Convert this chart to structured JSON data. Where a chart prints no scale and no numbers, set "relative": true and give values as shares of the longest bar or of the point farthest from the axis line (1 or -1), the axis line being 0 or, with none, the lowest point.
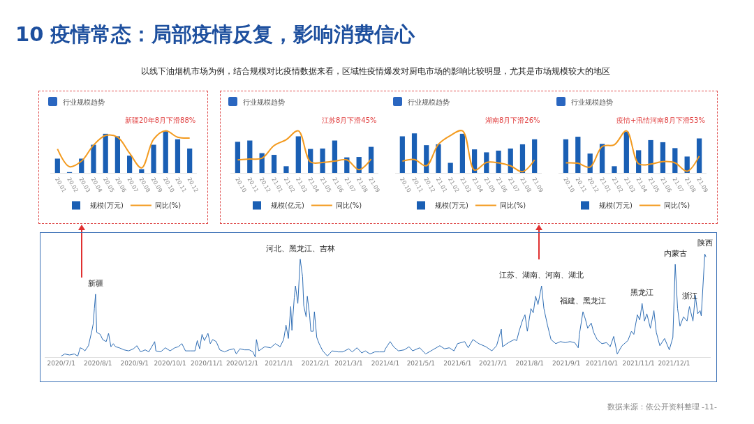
{
  "chart_data": [
    {
      "type": "other",
      "title": "10 疫情常态：局部疫情反复，影响消费信心",
      "subtitle": "以线下油烟机市场为例，结合规模对比疫情数据来看，区域性疫情爆发对厨电市场的影响比较明显，尤其是市场规模较大的地区"
    },
    {
      "type": "bar",
      "title": "行业规模趋势",
      "relative": true,
      "legend": "bottom",
      "categories": [
        "20.01",
        "20.02",
        "20.03",
        "20.04",
        "20.05",
        "20.06",
        "20.07",
        "20.08",
        "20.09",
        "20.10",
        "20.11",
        "20.12"
      ],
      "series": [
        {
          "name": "规模(万元)",
          "color": "#1a5fb4",
          "values": [
            0.34,
            0.02,
            0.34,
            0.67,
            0.93,
            0.87,
            0.41,
            0.09,
            0.67,
            0.99,
            0.8,
            0.58
          ]
        },
        {
          "name": "同比(%)",
          "type": "line",
          "color": "#f39a1e",
          "values": [
            0.57,
            0.15,
            0.28,
            0.66,
            0.89,
            0.85,
            0.47,
            0.12,
            0.8,
            1.0,
            0.85,
            0.83
          ]
        }
      ],
      "annotations": [
        "新疆20年8月下滑88%"
      ]
    },
    {
      "type": "bar",
      "title": "行业规模趋势",
      "relative": true,
      "legend": "bottom",
      "categories": [
        "20.10",
        "20.11",
        "20.12",
        "21.01",
        "21.02",
        "21.03",
        "21.04",
        "21.05",
        "21.06",
        "21.07",
        "21.08",
        "21.09"
      ],
      "series": [
        {
          "name": "规模(亿元)",
          "color": "#1a5fb4",
          "values": [
            0.74,
            0.77,
            0.47,
            0.43,
            0.16,
            0.87,
            0.57,
            0.58,
            0.77,
            0.37,
            0.38,
            0.62
          ]
        },
        {
          "name": "同比(%)",
          "type": "line",
          "color": "#f39a1e",
          "values": [
            0.31,
            0.33,
            0.35,
            0.65,
            0.79,
            1.0,
            0.26,
            0.25,
            0.28,
            0.31,
            0.08,
            0.33
          ]
        }
      ],
      "annotations": [
        "江苏8月下滑45%"
      ]
    },
    {
      "type": "bar",
      "title": "行业规模趋势",
      "relative": true,
      "legend": "bottom",
      "categories": [
        "20.10",
        "20.11",
        "20.12",
        "21.01",
        "21.02",
        "21.03",
        "21.04",
        "21.05",
        "21.06",
        "21.07",
        "21.08",
        "21.09"
      ],
      "series": [
        {
          "name": "规模(万元)",
          "color": "#1a5fb4",
          "values": [
            0.87,
            0.94,
            0.66,
            0.68,
            0.24,
            0.93,
            0.56,
            0.49,
            0.53,
            0.58,
            0.68,
            0.8
          ]
        },
        {
          "name": "同比(%)",
          "type": "line",
          "color": "#f39a1e",
          "values": [
            0.28,
            0.32,
            0.17,
            0.68,
            0.89,
            1.0,
            0.07,
            0.25,
            0.24,
            0.17,
            0.03,
            0.31
          ]
        }
      ],
      "annotations": [
        "湖南8月下滑26%"
      ]
    },
    {
      "type": "bar",
      "title": "行业规模趋势",
      "relative": true,
      "legend": "bottom",
      "categories": [
        "20.10",
        "20.11",
        "20.12",
        "21.01",
        "21.02",
        "21.03",
        "21.04",
        "21.05",
        "21.06",
        "21.07",
        "21.08",
        "21.09"
      ],
      "series": [
        {
          "name": "规模(万元)",
          "color": "#1a5fb4",
          "values": [
            0.8,
            0.86,
            0.46,
            0.69,
            0.16,
            0.98,
            0.54,
            0.78,
            0.73,
            0.59,
            0.39,
            0.82
          ]
        },
        {
          "name": "同比(%)",
          "type": "line",
          "color": "#f39a1e",
          "values": [
            0.24,
            0.23,
            0.14,
            0.63,
            0.67,
            1.0,
            0.22,
            0.21,
            0.27,
            0.24,
            0.04,
            0.4
          ]
        }
      ],
      "annotations": [
        "疫情+汛情河南8月下滑53%"
      ]
    },
    {
      "type": "line",
      "relative": true,
      "grid": false,
      "xlim": [
        "2020-06-17",
        "2022-01-01"
      ],
      "xticks": [
        {
          "value": "2020-07-01",
          "label": "2020/7/1"
        },
        {
          "value": "2020-08-01",
          "label": "2020/8/1"
        },
        {
          "value": "2020-09-01",
          "label": "2020/9/1"
        },
        {
          "value": "2020-10-01",
          "label": "2020/10/1"
        },
        {
          "value": "2020-11-01",
          "label": "2020/11/1"
        },
        {
          "value": "2020-12-01",
          "label": "2020/12/1"
        },
        {
          "value": "2021-01-01",
          "label": "2021/1/1"
        },
        {
          "value": "2021-02-01",
          "label": "2021/2/1"
        },
        {
          "value": "2021-03-01",
          "label": "2021/3/1"
        },
        {
          "value": "2021-04-01",
          "label": "2021/4/1"
        },
        {
          "value": "2021-05-01",
          "label": "2021/5/1"
        },
        {
          "value": "2021-06-01",
          "label": "2021/6/1"
        },
        {
          "value": "2021-07-01",
          "label": "2021/7/1"
        },
        {
          "value": "2021-08-01",
          "label": "2021/8/1"
        },
        {
          "value": "2021-09-01",
          "label": "2021/9/1"
        },
        {
          "value": "2021-10-01",
          "label": "2021/10/1"
        },
        {
          "value": "2021-11-01",
          "label": "2021/11/1"
        },
        {
          "value": "2021-12-01",
          "label": "2021/12/1"
        }
      ],
      "x": [
        "2020-07-01",
        "2020-07-04",
        "2020-07-08",
        "2020-07-12",
        "2020-07-15",
        "2020-07-17",
        "2020-07-19",
        "2020-07-21",
        "2020-07-24",
        "2020-07-27",
        "2020-07-28",
        "2020-07-29",
        "2020-07-30",
        "2020-07-31",
        "2020-08-03",
        "2020-08-05",
        "2020-08-08",
        "2020-08-10",
        "2020-08-12",
        "2020-08-14",
        "2020-08-16",
        "2020-08-19",
        "2020-08-23",
        "2020-08-27",
        "2020-08-31",
        "2020-09-03",
        "2020-09-06",
        "2020-09-10",
        "2020-09-13",
        "2020-09-18",
        "2020-09-19",
        "2020-09-23",
        "2020-09-27",
        "2020-10-01",
        "2020-10-05",
        "2020-10-08",
        "2020-10-11",
        "2020-10-14",
        "2020-10-18",
        "2020-10-22",
        "2020-10-24",
        "2020-10-26",
        "2020-10-28",
        "2020-10-30",
        "2020-11-02",
        "2020-11-04",
        "2020-11-06",
        "2020-11-09",
        "2020-11-12",
        "2020-11-16",
        "2020-11-20",
        "2020-11-24",
        "2020-11-26",
        "2020-11-29",
        "2020-12-03",
        "2020-12-07",
        "2020-12-10",
        "2020-12-12",
        "2020-12-13",
        "2020-12-15",
        "2020-12-20",
        "2020-12-25",
        "2020-12-29",
        "2021-01-02",
        "2021-01-05",
        "2021-01-07",
        "2021-01-09",
        "2021-01-11",
        "2021-01-12",
        "2021-01-14",
        "2021-01-15",
        "2021-01-17",
        "2021-01-19",
        "2021-01-21",
        "2021-01-22",
        "2021-01-24",
        "2021-01-25",
        "2021-01-27",
        "2021-01-28",
        "2021-01-30",
        "2021-01-31",
        "2021-02-02",
        "2021-02-04",
        "2021-02-07",
        "2021-02-11",
        "2021-02-15",
        "2021-02-20",
        "2021-02-24",
        "2021-03-01",
        "2021-03-04",
        "2021-03-08",
        "2021-03-12",
        "2021-03-15",
        "2021-03-19",
        "2021-03-23",
        "2021-03-27",
        "2021-03-31",
        "2021-04-01",
        "2021-04-05",
        "2021-04-08",
        "2021-04-12",
        "2021-04-17",
        "2021-04-21",
        "2021-04-24",
        "2021-04-30",
        "2021-05-05",
        "2021-05-11",
        "2021-05-17",
        "2021-05-21",
        "2021-05-25",
        "2021-05-29",
        "2021-06-01",
        "2021-06-07",
        "2021-06-10",
        "2021-06-14",
        "2021-06-19",
        "2021-06-25",
        "2021-06-30",
        "2021-07-04",
        "2021-07-08",
        "2021-07-09",
        "2021-07-14",
        "2021-07-19",
        "2021-07-21",
        "2021-07-23",
        "2021-07-26",
        "2021-07-28",
        "2021-07-30",
        "2021-08-02",
        "2021-08-04",
        "2021-08-06",
        "2021-08-08",
        "2021-08-11",
        "2021-08-13",
        "2021-08-16",
        "2021-08-19",
        "2021-08-23",
        "2021-08-27",
        "2021-08-31",
        "2021-09-04",
        "2021-09-08",
        "2021-09-11",
        "2021-09-12",
        "2021-09-15",
        "2021-09-17",
        "2021-09-19",
        "2021-09-22",
        "2021-09-24",
        "2021-09-27",
        "2021-10-01",
        "2021-10-05",
        "2021-10-08",
        "2021-10-11",
        "2021-10-14",
        "2021-10-18",
        "2021-10-23",
        "2021-10-26",
        "2021-10-28",
        "2021-10-31",
        "2021-11-02",
        "2021-11-04",
        "2021-11-06",
        "2021-11-08",
        "2021-11-11",
        "2021-11-14",
        "2021-11-16",
        "2021-11-19",
        "2021-11-23",
        "2021-11-27",
        "2021-11-30",
        "2021-12-02",
        "2021-12-04",
        "2021-12-06",
        "2021-12-09",
        "2021-12-12",
        "2021-12-14",
        "2021-12-17",
        "2021-12-19",
        "2021-12-21",
        "2021-12-23",
        "2021-12-24",
        "2021-12-27",
        "2021-12-28"
      ],
      "series": [
        {
          "color": "#2e6db4",
          "values": [
            0.01,
            0.03,
            0.02,
            0.03,
            0.01,
            0.09,
            0.08,
            0.06,
            0.11,
            0.26,
            0.32,
            0.47,
            0.61,
            0.24,
            0.22,
            0.17,
            0.15,
            0.23,
            0.1,
            0.13,
            0.1,
            0.09,
            0.07,
            0.06,
            0.08,
            0.11,
            0.05,
            0.07,
            0.05,
            0.15,
            0.06,
            0.05,
            0.09,
            0.06,
            0.09,
            0.1,
            0.13,
            0.06,
            0.06,
            0.06,
            0.16,
            0.08,
            0.22,
            0.16,
            0.23,
            0.13,
            0.17,
            0.15,
            0.07,
            0.05,
            0.07,
            0.08,
            0.03,
            0.08,
            0.07,
            0.07,
            0.05,
            0.0,
            0.17,
            0.06,
            0.1,
            0.09,
            0.13,
            0.1,
            0.17,
            0.31,
            0.18,
            0.49,
            0.26,
            0.58,
            0.69,
            0.52,
            0.95,
            0.78,
            0.5,
            0.39,
            0.59,
            0.4,
            0.25,
            0.25,
            0.44,
            0.19,
            0.13,
            0.06,
            0.01,
            0.06,
            0.05,
            0.05,
            0.08,
            0.05,
            0.09,
            0.04,
            0.06,
            0.03,
            0.05,
            0.05,
            0.05,
            0.08,
            0.15,
            0.1,
            0.06,
            0.07,
            0.1,
            0.06,
            0.09,
            0.03,
            0.07,
            0.11,
            0.08,
            0.09,
            0.06,
            0.13,
            0.15,
            0.09,
            0.17,
            0.13,
            0.1,
            0.06,
            0.11,
            0.27,
            0.1,
            0.14,
            0.17,
            0.16,
            0.25,
            0.36,
            0.41,
            0.25,
            0.47,
            0.43,
            0.59,
            0.51,
            0.69,
            0.47,
            0.31,
            0.17,
            0.13,
            0.15,
            0.14,
            0.15,
            0.14,
            0.09,
            0.22,
            0.44,
            0.37,
            0.28,
            0.33,
            0.24,
            0.17,
            0.13,
            0.14,
            0.1,
            0.2,
            0.03,
            0.11,
            0.16,
            0.25,
            0.22,
            0.41,
            0.36,
            0.52,
            0.35,
            0.42,
            0.28,
            0.45,
            0.24,
            0.11,
            0.18,
            0.07,
            0.19,
            0.9,
            0.47,
            0.3,
            0.39,
            0.35,
            0.49,
            0.35,
            0.6,
            0.42,
            0.45,
            0.4,
            1.0,
            0.97
          ]
        }
      ],
      "annotations": [
        {
          "text": "新疆",
          "x": "2020-07-30",
          "y": 0.61
        },
        {
          "text": "河北、黑龙江、吉林",
          "x": "2021-01-19",
          "y": 0.95
        },
        {
          "text": "江苏、湖南、河南、湖北",
          "x": "2021-08-11",
          "y": 0.69
        },
        {
          "text": "福建、黑龙江",
          "x": "2021-09-15",
          "y": 0.44
        },
        {
          "text": "黑龙江",
          "x": "2021-11-04",
          "y": 0.52
        },
        {
          "text": "内蒙古",
          "x": "2021-12-02",
          "y": 0.9
        },
        {
          "text": "浙江",
          "x": "2021-12-14",
          "y": 0.49
        },
        {
          "text": "陕西",
          "x": "2021-12-27",
          "y": 1.0
        },
        "数据来源：依公开资料整理",
        "-11-"
      ]
    }
  ]
}
